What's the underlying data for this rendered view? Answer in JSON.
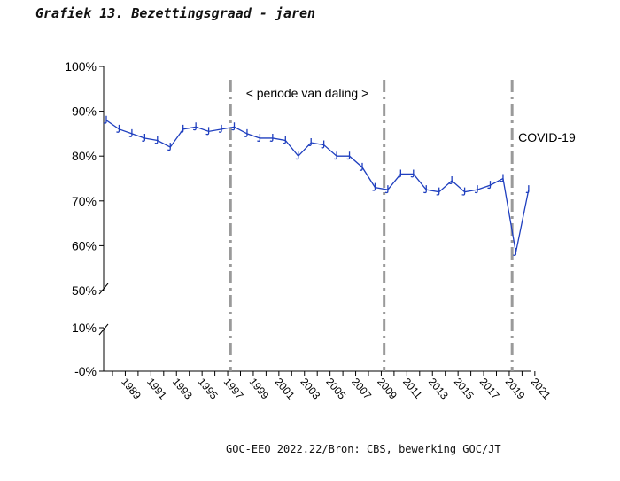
{
  "figure": {
    "title": "Grafiek 13. Bezettingsgraad - jaren",
    "source": "GOC-EEO 2022.22/Bron: CBS, bewerking GOC/JT"
  },
  "chart_data": {
    "type": "line",
    "title": "Grafiek 13. Bezettingsgraad - jaren",
    "xlabel": "",
    "ylabel": "",
    "y_axis_break": true,
    "y_tick_labels": [
      "100%",
      "90%",
      "80%",
      "70%",
      "60%",
      "50%",
      "10%",
      "-0%"
    ],
    "x_tick_labels": [
      "1989",
      "1991",
      "1993",
      "1995",
      "1997",
      "1999",
      "2001",
      "2003",
      "2005",
      "2007",
      "2009",
      "2011",
      "2013",
      "2015",
      "2017",
      "2019",
      "2021"
    ],
    "grid": false,
    "series": [
      {
        "color": "#1f3fbf",
        "x": [
          1988,
          1989,
          1990,
          1991,
          1992,
          1993,
          1994,
          1995,
          1996,
          1997,
          1998,
          1999,
          2000,
          2001,
          2002,
          2003,
          2004,
          2005,
          2006,
          2007,
          2008,
          2009,
          2010,
          2011,
          2012,
          2013,
          2014,
          2015,
          2016,
          2017,
          2018,
          2019,
          2020,
          2021
        ],
        "values": [
          88,
          86,
          85,
          84,
          83.5,
          82,
          86,
          86.5,
          85.5,
          86,
          86.5,
          85,
          84,
          84,
          83.5,
          80,
          83,
          82.5,
          80,
          80,
          77.5,
          73,
          72.5,
          76,
          76,
          72.5,
          72,
          74.5,
          72,
          72.5,
          73.5,
          75,
          58.5,
          72.5
        ]
      }
    ],
    "annotations": [
      {
        "label": "< periode van daling >",
        "from_year": 1997.5,
        "to_year": 2009.5
      },
      {
        "label": "COVID-19",
        "year": 2019.5
      }
    ]
  }
}
